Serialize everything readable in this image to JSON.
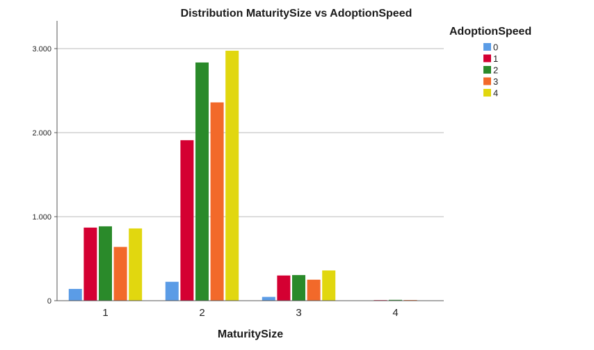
{
  "chart_data": {
    "type": "bar",
    "title": "Distribution MaturitySize vs AdoptionSpeed",
    "xlabel": "MaturitySize",
    "ylabel": "",
    "categories": [
      "1",
      "2",
      "3",
      "4"
    ],
    "ylim": [
      0,
      3300
    ],
    "yticks": [
      0,
      1000,
      2000,
      3000
    ],
    "ytick_labels": [
      "0",
      "1.000",
      "2.000",
      "3.000"
    ],
    "grid": true,
    "legend": {
      "title": "AdoptionSpeed",
      "position": "top-right"
    },
    "series": [
      {
        "name": "0",
        "color": "#5b9ce6",
        "values": [
          140,
          225,
          45,
          0
        ]
      },
      {
        "name": "1",
        "color": "#d40032",
        "values": [
          870,
          1910,
          300,
          7
        ]
      },
      {
        "name": "2",
        "color": "#2a8a2a",
        "values": [
          885,
          2835,
          305,
          10
        ]
      },
      {
        "name": "3",
        "color": "#f2692a",
        "values": [
          640,
          2360,
          250,
          8
        ]
      },
      {
        "name": "4",
        "color": "#e1d70f",
        "values": [
          860,
          2975,
          360,
          4
        ]
      }
    ]
  }
}
